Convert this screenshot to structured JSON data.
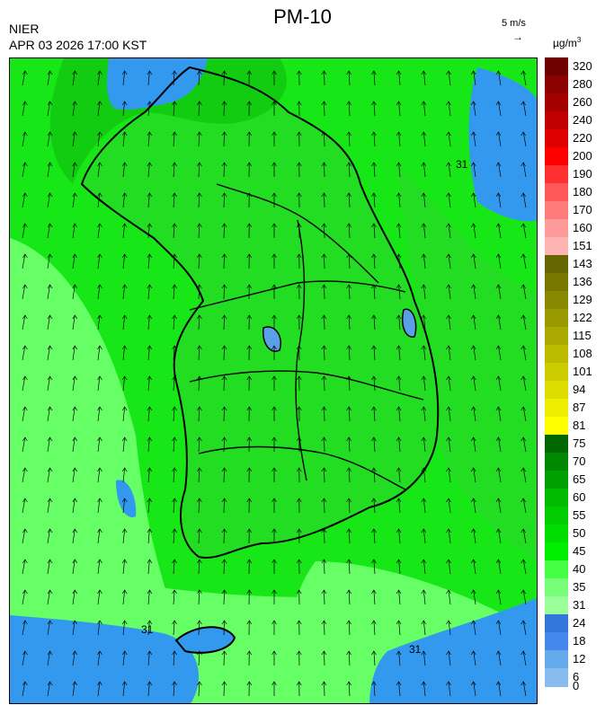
{
  "header": {
    "title": "PM-10",
    "organization": "NIER",
    "datetime": "APR 03 2026 17:00 KST",
    "vector_scale_label": "5 m/s",
    "vector_scale_arrow": "→",
    "unit_base": "µg/m",
    "unit_exp": "3"
  },
  "map": {
    "contour_labels": [
      "31",
      "31",
      "31"
    ],
    "wind_direction": "north",
    "background_color": "#17e617",
    "region_colors": {
      "sea_light": "#66ff66",
      "land": "#22dd22",
      "land_dark": "#11cc11",
      "clean_blue": "#3399ee",
      "lake_blue": "#5aa0e8"
    }
  },
  "legend": {
    "bins": [
      {
        "label": "320",
        "color": "#6e0000"
      },
      {
        "label": "280",
        "color": "#8b0000"
      },
      {
        "label": "260",
        "color": "#a50000"
      },
      {
        "label": "240",
        "color": "#c00000"
      },
      {
        "label": "220",
        "color": "#de0000"
      },
      {
        "label": "200",
        "color": "#ff0000"
      },
      {
        "label": "190",
        "color": "#ff3030"
      },
      {
        "label": "180",
        "color": "#ff5858"
      },
      {
        "label": "170",
        "color": "#ff7a7a"
      },
      {
        "label": "160",
        "color": "#ff9a9a"
      },
      {
        "label": "151",
        "color": "#ffb4b4"
      },
      {
        "label": "143",
        "color": "#666600"
      },
      {
        "label": "136",
        "color": "#777700"
      },
      {
        "label": "129",
        "color": "#888800"
      },
      {
        "label": "122",
        "color": "#999900"
      },
      {
        "label": "115",
        "color": "#aaaa00"
      },
      {
        "label": "108",
        "color": "#bbbb00"
      },
      {
        "label": "101",
        "color": "#cccc00"
      },
      {
        "label": "94",
        "color": "#dddd00"
      },
      {
        "label": "87",
        "color": "#eeee00"
      },
      {
        "label": "81",
        "color": "#ffff00"
      },
      {
        "label": "75",
        "color": "#006600"
      },
      {
        "label": "70",
        "color": "#008800"
      },
      {
        "label": "65",
        "color": "#00a000"
      },
      {
        "label": "60",
        "color": "#00bb00"
      },
      {
        "label": "55",
        "color": "#00cc00"
      },
      {
        "label": "50",
        "color": "#00dd00"
      },
      {
        "label": "45",
        "color": "#00ee00"
      },
      {
        "label": "40",
        "color": "#44ff44"
      },
      {
        "label": "35",
        "color": "#77ff77"
      },
      {
        "label": "31",
        "color": "#99ff99"
      },
      {
        "label": "24",
        "color": "#3377dd"
      },
      {
        "label": "18",
        "color": "#4488ee"
      },
      {
        "label": "12",
        "color": "#66aaee"
      },
      {
        "label": "6",
        "color": "#88bbee"
      },
      {
        "label": "0",
        "color": "#aaccee"
      }
    ]
  }
}
